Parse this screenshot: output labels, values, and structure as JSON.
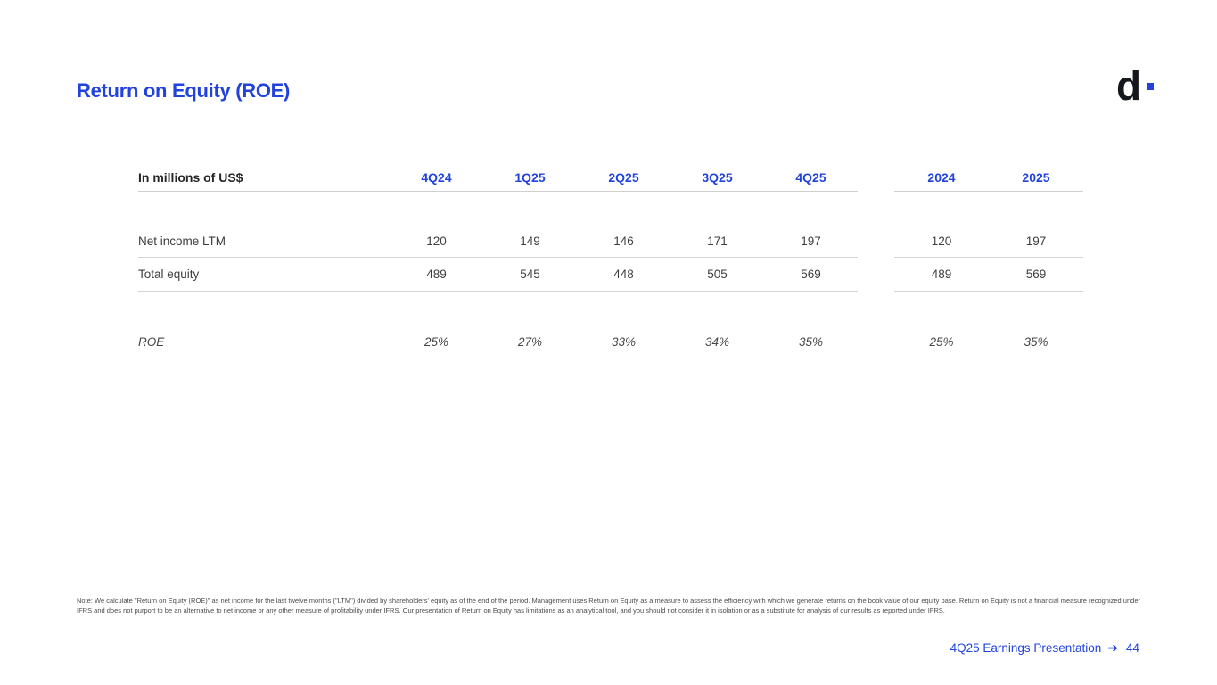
{
  "slide": {
    "title": "Return on Equity (ROE)",
    "logo_letter": "d"
  },
  "colors": {
    "accent_blue": "#2143dc",
    "logo_black": "#14171c",
    "body_text": "#3e3e3e",
    "rule_light": "#d4d4d4",
    "rule_dark": "#949494"
  },
  "table": {
    "unit_label": "In millions of US$",
    "quarter_columns": [
      "4Q24",
      "1Q25",
      "2Q25",
      "3Q25",
      "4Q25"
    ],
    "year_columns": [
      "2024",
      "2025"
    ],
    "rows": [
      {
        "label": "Net income LTM",
        "quarters": [
          "120",
          "149",
          "146",
          "171",
          "197"
        ],
        "years": [
          "120",
          "197"
        ]
      },
      {
        "label": "Total equity",
        "quarters": [
          "489",
          "545",
          "448",
          "505",
          "569"
        ],
        "years": [
          "489",
          "569"
        ]
      },
      {
        "label": "ROE",
        "quarters": [
          "25%",
          "27%",
          "33%",
          "34%",
          "35%"
        ],
        "years": [
          "25%",
          "35%"
        ]
      }
    ]
  },
  "footnote": {
    "text": "Note: We calculate \"Return on Equity (ROE)\" as net income for the last twelve months (\"LTM\") divided by shareholders' equity as of the end of the period. Management uses Return on Equity as a measure to assess the efficiency with which we generate returns on the book value of our equity base. Return on Equity is not a financial measure recognized under IFRS and does not purport to be an alternative to net income or any other measure of profitability under IFRS. Our presentation of Return on Equity has limitations as an analytical tool, and you should not consider it in isolation or as a substitute for analysis of our results as reported under IFRS."
  },
  "footer": {
    "label": "4Q25 Earnings Presentation",
    "arrow": "➔",
    "page": "44"
  }
}
